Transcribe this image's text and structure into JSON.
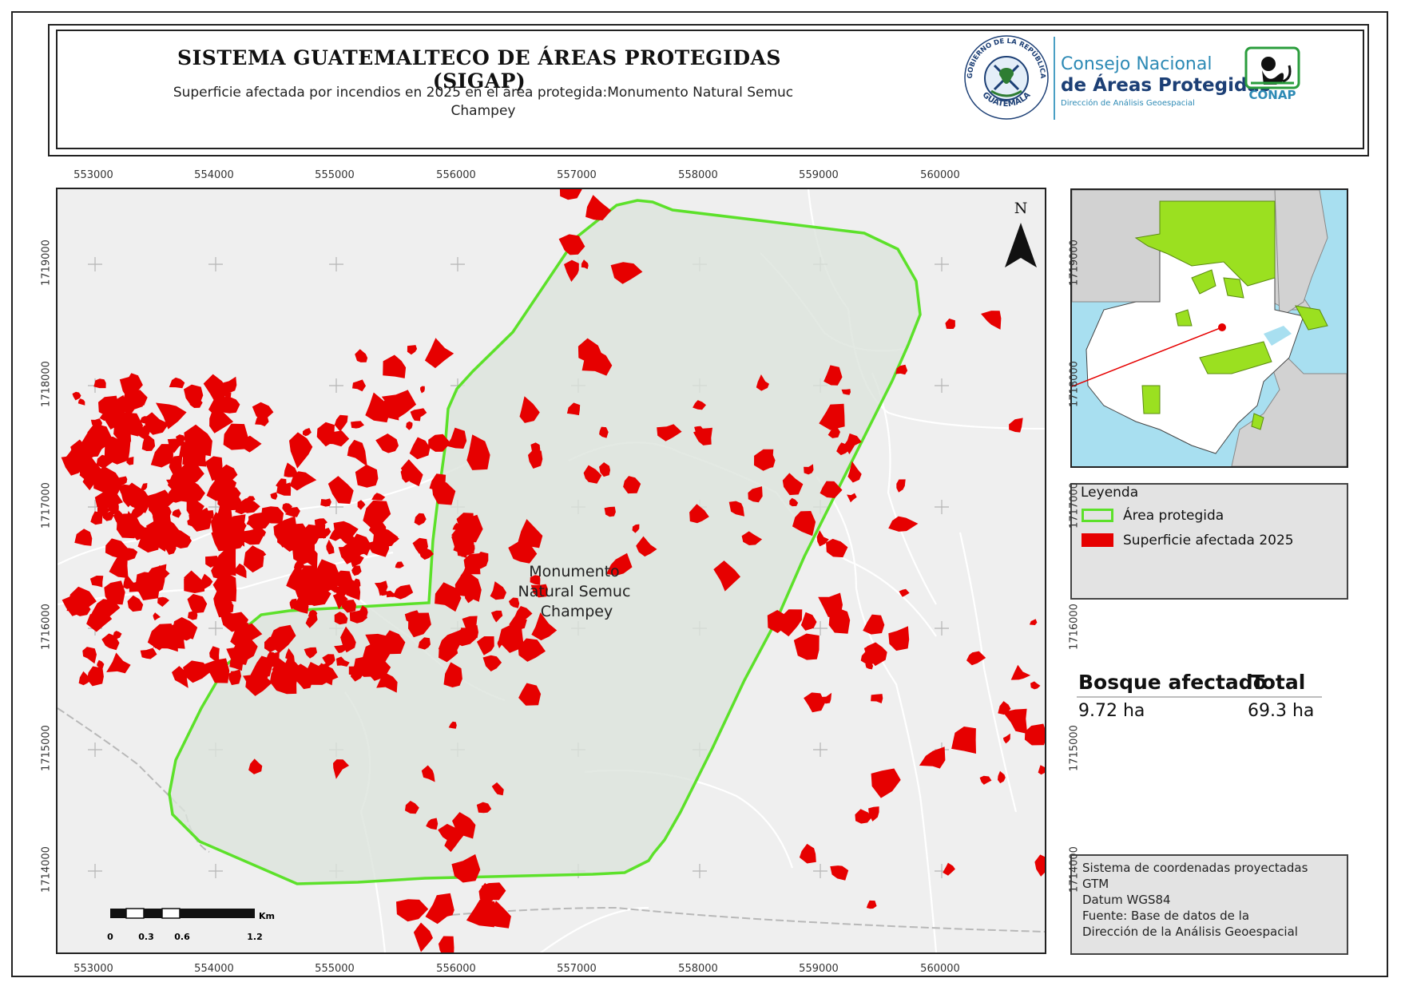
{
  "header": {
    "title": "SISTEMA GUATEMALTECO DE ÁREAS PROTEGIDAS  (SIGAP)",
    "subtitle": "Superficie afectada por incendios en 2025 en el área protegida:Monumento Natural Semuc Champey",
    "logo_seal": {
      "top_text": "GOBIERNO DE LA REPÚBLICA",
      "bottom_text": "GUATEMALA",
      "icon": "quetzal-seal-icon"
    },
    "conap": {
      "line1": "Consejo Nacional",
      "line2": "de Áreas Protegidas",
      "line3": "Dirección de Análisis Geoespacial",
      "mark_text": "CONAP",
      "icon": "conap-monkey-icon"
    }
  },
  "colors": {
    "protected_area_outline": "#5ce12a",
    "fire_patch": "#e60000",
    "map_background": "#efefef",
    "water": "#a8dff0",
    "inset_highlight": "#9be020"
  },
  "map": {
    "x_ticks": [
      "553000",
      "554000",
      "555000",
      "556000",
      "557000",
      "558000",
      "559000",
      "560000"
    ],
    "y_ticks": [
      "1719000",
      "1718000",
      "1717000",
      "1716000",
      "1715000",
      "1714000"
    ],
    "area_label": "Monumento\nNatural Semuc\nChampey",
    "north_label": "N",
    "scale_bar": {
      "unit": "Km",
      "ticks": [
        "0",
        "0.3",
        "0.6",
        "1.2"
      ]
    }
  },
  "legend": {
    "title": "Leyenda",
    "items": [
      {
        "label": "Área protegida",
        "symbol": "outline"
      },
      {
        "label": "Superficie afectada 2025",
        "symbol": "fill"
      }
    ]
  },
  "stats": {
    "col1_header": "Bosque afectado",
    "col2_header": "Total",
    "col1_value": "9.72 ha",
    "col2_value": "69.3 ha"
  },
  "info": {
    "lines": [
      "Sistema de coordenadas proyectadas",
      "GTM",
      "Datum WGS84",
      "Fuente: Base de datos de la",
      "Dirección de la Análisis Geoespacial"
    ]
  }
}
